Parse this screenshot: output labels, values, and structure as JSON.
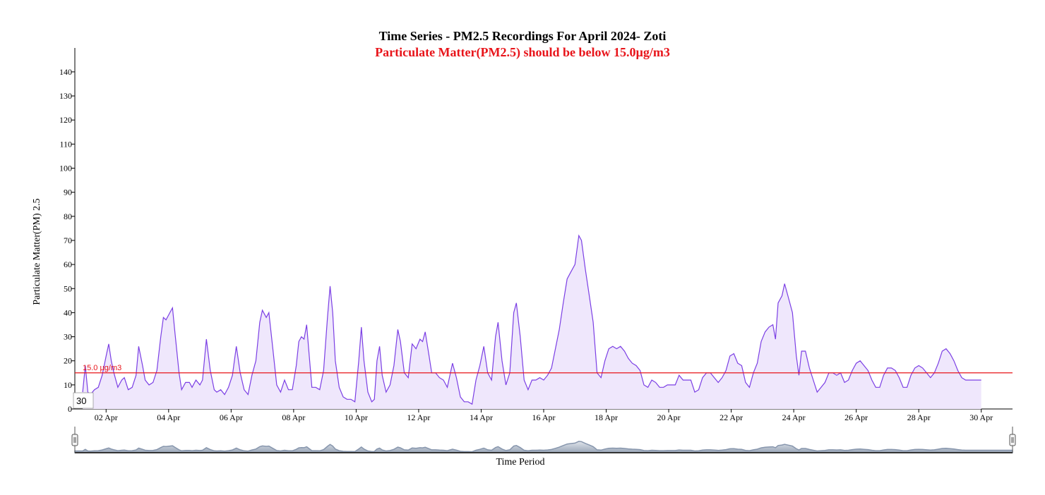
{
  "chart_data": {
    "type": "area",
    "title": "Time Series - PM2.5 Recordings For April 2024- Zoti",
    "subtitle": "Particulate Matter(PM2.5) should be below 15.0µg/m3",
    "ylabel": "Particulate Matter(PM) 2.5",
    "xlabel": "Time Period",
    "ylim": [
      0,
      150
    ],
    "yticks": [
      0,
      10,
      20,
      30,
      40,
      50,
      60,
      70,
      80,
      90,
      100,
      110,
      120,
      130,
      140
    ],
    "xlim": [
      "2024-04-01T00:00",
      "2024-05-01T00:00"
    ],
    "xticks": [
      {
        "date": "2024-04-02",
        "label": "02 Apr"
      },
      {
        "date": "2024-04-04",
        "label": "04 Apr"
      },
      {
        "date": "2024-04-06",
        "label": "06 Apr"
      },
      {
        "date": "2024-04-08",
        "label": "08 Apr"
      },
      {
        "date": "2024-04-10",
        "label": "10 Apr"
      },
      {
        "date": "2024-04-12",
        "label": "12 Apr"
      },
      {
        "date": "2024-04-14",
        "label": "14 Apr"
      },
      {
        "date": "2024-04-16",
        "label": "16 Apr"
      },
      {
        "date": "2024-04-18",
        "label": "18 Apr"
      },
      {
        "date": "2024-04-20",
        "label": "20 Apr"
      },
      {
        "date": "2024-04-22",
        "label": "22 Apr"
      },
      {
        "date": "2024-04-24",
        "label": "24 Apr"
      },
      {
        "date": "2024-04-26",
        "label": "26 Apr"
      },
      {
        "date": "2024-04-28",
        "label": "28 Apr"
      },
      {
        "date": "2024-04-30",
        "label": "30 Apr"
      }
    ],
    "threshold": {
      "value": 15.0,
      "label": "15.0 µg/m3",
      "color": "#e8141a"
    },
    "tooltip_value": "30",
    "series_color": "#7b3fe4",
    "fill_color": "#efe7fc",
    "navigator_color": "#8796ad",
    "series": [
      {
        "values": [
          [
            "2024-04-01T06:00",
            7
          ],
          [
            "2024-04-01T08:00",
            18
          ],
          [
            "2024-04-01T10:00",
            7
          ],
          [
            "2024-04-01T12:00",
            6
          ],
          [
            "2024-04-01T15:00",
            8
          ],
          [
            "2024-04-01T18:00",
            9
          ],
          [
            "2024-04-01T21:00",
            14
          ],
          [
            "2024-04-02T00:00",
            22
          ],
          [
            "2024-04-02T02:00",
            27
          ],
          [
            "2024-04-02T04:00",
            20
          ],
          [
            "2024-04-02T06:00",
            15
          ],
          [
            "2024-04-02T09:00",
            9
          ],
          [
            "2024-04-02T12:00",
            12
          ],
          [
            "2024-04-02T14:00",
            13
          ],
          [
            "2024-04-02T17:00",
            8
          ],
          [
            "2024-04-02T20:00",
            9
          ],
          [
            "2024-04-02T23:00",
            14
          ],
          [
            "2024-04-03T01:00",
            26
          ],
          [
            "2024-04-03T04:00",
            18
          ],
          [
            "2024-04-03T06:00",
            12
          ],
          [
            "2024-04-03T09:00",
            10
          ],
          [
            "2024-04-03T12:00",
            11
          ],
          [
            "2024-04-03T15:00",
            16
          ],
          [
            "2024-04-03T18:00",
            30
          ],
          [
            "2024-04-03T20:00",
            38
          ],
          [
            "2024-04-03T22:00",
            37
          ],
          [
            "2024-04-04T01:00",
            40
          ],
          [
            "2024-04-04T03:00",
            42
          ],
          [
            "2024-04-04T05:00",
            31
          ],
          [
            "2024-04-04T08:00",
            15
          ],
          [
            "2024-04-04T10:00",
            8
          ],
          [
            "2024-04-04T13:00",
            11
          ],
          [
            "2024-04-04T16:00",
            11
          ],
          [
            "2024-04-04T18:00",
            9
          ],
          [
            "2024-04-04T21:00",
            12
          ],
          [
            "2024-04-05T00:00",
            10
          ],
          [
            "2024-04-05T02:00",
            12
          ],
          [
            "2024-04-05T05:00",
            29
          ],
          [
            "2024-04-05T08:00",
            16
          ],
          [
            "2024-04-05T11:00",
            8
          ],
          [
            "2024-04-05T13:00",
            7
          ],
          [
            "2024-04-05T16:00",
            8
          ],
          [
            "2024-04-05T19:00",
            6
          ],
          [
            "2024-04-05T22:00",
            9
          ],
          [
            "2024-04-06T01:00",
            14
          ],
          [
            "2024-04-06T04:00",
            26
          ],
          [
            "2024-04-06T07:00",
            15
          ],
          [
            "2024-04-06T10:00",
            8
          ],
          [
            "2024-04-06T13:00",
            6
          ],
          [
            "2024-04-06T16:00",
            14
          ],
          [
            "2024-04-06T19:00",
            20
          ],
          [
            "2024-04-06T22:00",
            36
          ],
          [
            "2024-04-07T00:00",
            41
          ],
          [
            "2024-04-07T03:00",
            38
          ],
          [
            "2024-04-07T05:00",
            40
          ],
          [
            "2024-04-07T08:00",
            25
          ],
          [
            "2024-04-07T11:00",
            10
          ],
          [
            "2024-04-07T14:00",
            7
          ],
          [
            "2024-04-07T17:00",
            12
          ],
          [
            "2024-04-07T20:00",
            8
          ],
          [
            "2024-04-07T23:00",
            8
          ],
          [
            "2024-04-08T02:00",
            18
          ],
          [
            "2024-04-08T04:00",
            28
          ],
          [
            "2024-04-08T06:00",
            30
          ],
          [
            "2024-04-08T08:00",
            29
          ],
          [
            "2024-04-08T10:00",
            35
          ],
          [
            "2024-04-08T12:00",
            22
          ],
          [
            "2024-04-08T14:00",
            9
          ],
          [
            "2024-04-08T17:00",
            9
          ],
          [
            "2024-04-08T20:00",
            8
          ],
          [
            "2024-04-08T23:00",
            16
          ],
          [
            "2024-04-09T02:00",
            38
          ],
          [
            "2024-04-09T04:00",
            51
          ],
          [
            "2024-04-09T06:00",
            40
          ],
          [
            "2024-04-09T08:00",
            20
          ],
          [
            "2024-04-09T11:00",
            9
          ],
          [
            "2024-04-09T14:00",
            5
          ],
          [
            "2024-04-09T17:00",
            4
          ],
          [
            "2024-04-09T20:00",
            4
          ],
          [
            "2024-04-09T23:00",
            3
          ],
          [
            "2024-04-10T02:00",
            20
          ],
          [
            "2024-04-10T04:00",
            34
          ],
          [
            "2024-04-10T06:00",
            20
          ],
          [
            "2024-04-10T09:00",
            7
          ],
          [
            "2024-04-10T12:00",
            3
          ],
          [
            "2024-04-10T14:00",
            4
          ],
          [
            "2024-04-10T16:00",
            20
          ],
          [
            "2024-04-10T18:00",
            26
          ],
          [
            "2024-04-10T20:00",
            14
          ],
          [
            "2024-04-10T23:00",
            7
          ],
          [
            "2024-04-11T02:00",
            10
          ],
          [
            "2024-04-11T05:00",
            18
          ],
          [
            "2024-04-11T08:00",
            33
          ],
          [
            "2024-04-11T10:00",
            28
          ],
          [
            "2024-04-11T13:00",
            15
          ],
          [
            "2024-04-11T16:00",
            13
          ],
          [
            "2024-04-11T19:00",
            27
          ],
          [
            "2024-04-11T22:00",
            25
          ],
          [
            "2024-04-12T01:00",
            29
          ],
          [
            "2024-04-12T03:00",
            28
          ],
          [
            "2024-04-12T05:00",
            32
          ],
          [
            "2024-04-12T08:00",
            22
          ],
          [
            "2024-04-12T10:00",
            15
          ],
          [
            "2024-04-12T13:00",
            15
          ],
          [
            "2024-04-12T16:00",
            13
          ],
          [
            "2024-04-12T19:00",
            12
          ],
          [
            "2024-04-12T22:00",
            9
          ],
          [
            "2024-04-13T02:00",
            19
          ],
          [
            "2024-04-13T05:00",
            13
          ],
          [
            "2024-04-13T08:00",
            5
          ],
          [
            "2024-04-13T11:00",
            3
          ],
          [
            "2024-04-13T14:00",
            3
          ],
          [
            "2024-04-13T17:00",
            2
          ],
          [
            "2024-04-13T20:00",
            12
          ],
          [
            "2024-04-13T23:00",
            18
          ],
          [
            "2024-04-14T02:00",
            26
          ],
          [
            "2024-04-14T05:00",
            15
          ],
          [
            "2024-04-14T08:00",
            12
          ],
          [
            "2024-04-14T11:00",
            30
          ],
          [
            "2024-04-14T13:00",
            36
          ],
          [
            "2024-04-14T16:00",
            20
          ],
          [
            "2024-04-14T19:00",
            10
          ],
          [
            "2024-04-14T22:00",
            15
          ],
          [
            "2024-04-15T01:00",
            40
          ],
          [
            "2024-04-15T03:00",
            44
          ],
          [
            "2024-04-15T06:00",
            30
          ],
          [
            "2024-04-15T09:00",
            12
          ],
          [
            "2024-04-15T12:00",
            8
          ],
          [
            "2024-04-15T15:00",
            12
          ],
          [
            "2024-04-15T18:00",
            12
          ],
          [
            "2024-04-15T21:00",
            13
          ],
          [
            "2024-04-16T00:00",
            12
          ],
          [
            "2024-04-16T03:00",
            14
          ],
          [
            "2024-04-16T06:00",
            17
          ],
          [
            "2024-04-16T09:00",
            25
          ],
          [
            "2024-04-16T12:00",
            33
          ],
          [
            "2024-04-16T15:00",
            44
          ],
          [
            "2024-04-16T18:00",
            54
          ],
          [
            "2024-04-16T21:00",
            57
          ],
          [
            "2024-04-17T00:00",
            60
          ],
          [
            "2024-04-17T03:00",
            72
          ],
          [
            "2024-04-17T05:00",
            70
          ],
          [
            "2024-04-17T08:00",
            58
          ],
          [
            "2024-04-17T11:00",
            47
          ],
          [
            "2024-04-17T14:00",
            36
          ],
          [
            "2024-04-17T17:00",
            15
          ],
          [
            "2024-04-17T20:00",
            13
          ],
          [
            "2024-04-17T23:00",
            20
          ],
          [
            "2024-04-18T02:00",
            25
          ],
          [
            "2024-04-18T05:00",
            26
          ],
          [
            "2024-04-18T08:00",
            25
          ],
          [
            "2024-04-18T11:00",
            26
          ],
          [
            "2024-04-18T14:00",
            24
          ],
          [
            "2024-04-18T17:00",
            21
          ],
          [
            "2024-04-18T20:00",
            19
          ],
          [
            "2024-04-18T23:00",
            18
          ],
          [
            "2024-04-19T02:00",
            16
          ],
          [
            "2024-04-19T05:00",
            10
          ],
          [
            "2024-04-19T08:00",
            9
          ],
          [
            "2024-04-19T11:00",
            12
          ],
          [
            "2024-04-19T14:00",
            11
          ],
          [
            "2024-04-19T17:00",
            9
          ],
          [
            "2024-04-19T20:00",
            9
          ],
          [
            "2024-04-19T23:00",
            10
          ],
          [
            "2024-04-20T02:00",
            10
          ],
          [
            "2024-04-20T05:00",
            10
          ],
          [
            "2024-04-20T08:00",
            14
          ],
          [
            "2024-04-20T11:00",
            12
          ],
          [
            "2024-04-20T14:00",
            12
          ],
          [
            "2024-04-20T17:00",
            12
          ],
          [
            "2024-04-20T20:00",
            7
          ],
          [
            "2024-04-20T23:00",
            8
          ],
          [
            "2024-04-21T02:00",
            13
          ],
          [
            "2024-04-21T05:00",
            15
          ],
          [
            "2024-04-21T08:00",
            15
          ],
          [
            "2024-04-21T11:00",
            13
          ],
          [
            "2024-04-21T14:00",
            11
          ],
          [
            "2024-04-21T17:00",
            13
          ],
          [
            "2024-04-21T20:00",
            16
          ],
          [
            "2024-04-21T23:00",
            22
          ],
          [
            "2024-04-22T02:00",
            23
          ],
          [
            "2024-04-22T05:00",
            19
          ],
          [
            "2024-04-22T08:00",
            18
          ],
          [
            "2024-04-22T11:00",
            11
          ],
          [
            "2024-04-22T14:00",
            9
          ],
          [
            "2024-04-22T17:00",
            15
          ],
          [
            "2024-04-22T20:00",
            19
          ],
          [
            "2024-04-22T23:00",
            28
          ],
          [
            "2024-04-23T02:00",
            32
          ],
          [
            "2024-04-23T05:00",
            34
          ],
          [
            "2024-04-23T08:00",
            35
          ],
          [
            "2024-04-23T10:00",
            29
          ],
          [
            "2024-04-23T12:00",
            44
          ],
          [
            "2024-04-23T15:00",
            47
          ],
          [
            "2024-04-23T17:00",
            52
          ],
          [
            "2024-04-23T20:00",
            46
          ],
          [
            "2024-04-23T23:00",
            40
          ],
          [
            "2024-04-24T02:00",
            22
          ],
          [
            "2024-04-24T04:00",
            14
          ],
          [
            "2024-04-24T06:00",
            24
          ],
          [
            "2024-04-24T09:00",
            24
          ],
          [
            "2024-04-24T12:00",
            17
          ],
          [
            "2024-04-24T15:00",
            12
          ],
          [
            "2024-04-24T18:00",
            7
          ],
          [
            "2024-04-24T21:00",
            9
          ],
          [
            "2024-04-25T00:00",
            11
          ],
          [
            "2024-04-25T03:00",
            15
          ],
          [
            "2024-04-25T06:00",
            15
          ],
          [
            "2024-04-25T09:00",
            14
          ],
          [
            "2024-04-25T12:00",
            15
          ],
          [
            "2024-04-25T15:00",
            11
          ],
          [
            "2024-04-25T18:00",
            12
          ],
          [
            "2024-04-25T21:00",
            16
          ],
          [
            "2024-04-26T00:00",
            19
          ],
          [
            "2024-04-26T03:00",
            20
          ],
          [
            "2024-04-26T06:00",
            18
          ],
          [
            "2024-04-26T09:00",
            16
          ],
          [
            "2024-04-26T12:00",
            12
          ],
          [
            "2024-04-26T15:00",
            9
          ],
          [
            "2024-04-26T18:00",
            9
          ],
          [
            "2024-04-26T21:00",
            14
          ],
          [
            "2024-04-27T00:00",
            17
          ],
          [
            "2024-04-27T03:00",
            17
          ],
          [
            "2024-04-27T06:00",
            16
          ],
          [
            "2024-04-27T09:00",
            13
          ],
          [
            "2024-04-27T12:00",
            9
          ],
          [
            "2024-04-27T15:00",
            9
          ],
          [
            "2024-04-27T18:00",
            14
          ],
          [
            "2024-04-27T21:00",
            17
          ],
          [
            "2024-04-28T00:00",
            18
          ],
          [
            "2024-04-28T03:00",
            17
          ],
          [
            "2024-04-28T06:00",
            15
          ],
          [
            "2024-04-28T09:00",
            13
          ],
          [
            "2024-04-28T12:00",
            15
          ],
          [
            "2024-04-28T15:00",
            19
          ],
          [
            "2024-04-28T18:00",
            24
          ],
          [
            "2024-04-28T21:00",
            25
          ],
          [
            "2024-04-29T00:00",
            23
          ],
          [
            "2024-04-29T03:00",
            20
          ],
          [
            "2024-04-29T06:00",
            16
          ],
          [
            "2024-04-29T09:00",
            13
          ],
          [
            "2024-04-29T12:00",
            12
          ],
          [
            "2024-04-30T00:00",
            12
          ]
        ]
      }
    ]
  }
}
